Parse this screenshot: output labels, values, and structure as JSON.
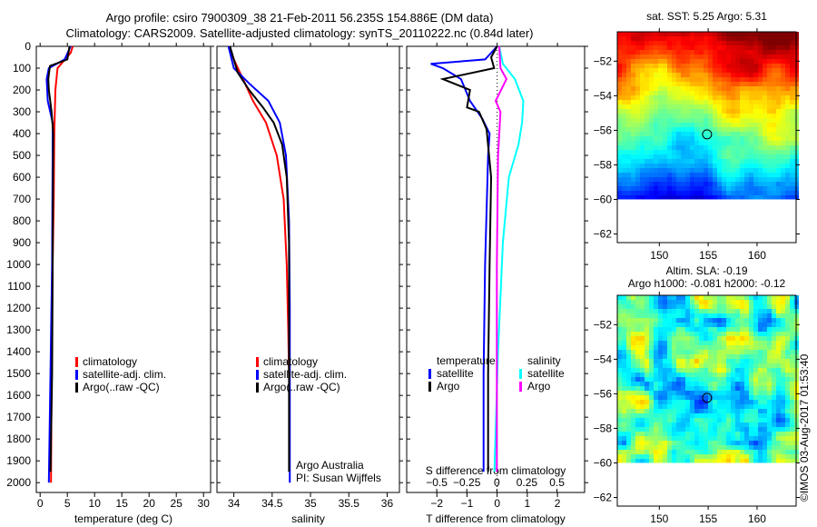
{
  "titles": [
    "Argo profile: csiro 7900309_38 21-Feb-2011 56.235S 154.886E (DM data)",
    "Climatology: CARS2009. Satellite-adjusted climatology: synTS_20110222.nc (0.84d later)"
  ],
  "colors": {
    "climatology": "#ff0000",
    "satellite": "#0000ff",
    "argo": "#000000",
    "sat_sal": "#00ffff",
    "argo_sal": "#ff00ff"
  },
  "watermark": "©IMOS 03-Aug-2017 01:53:40",
  "chart_data": [
    {
      "type": "line",
      "xlabel": "temperature (deg C)",
      "xlim": [
        -0.7,
        31.3
      ],
      "xticks": [
        0,
        5,
        10,
        15,
        20,
        25,
        30
      ],
      "ylim": [
        2045,
        0
      ],
      "yticks": [
        0,
        100,
        200,
        300,
        400,
        500,
        600,
        700,
        800,
        900,
        1000,
        1100,
        1200,
        1300,
        1400,
        1500,
        1600,
        1700,
        1800,
        1900,
        2000
      ],
      "legend": [
        "climatology",
        "satellite-adj. clim.",
        "Argo(..raw -QC)"
      ],
      "series": [
        {
          "name": "climatology",
          "color": "#ff0000",
          "x": [
            6,
            5.6,
            3.2,
            2.8,
            2.6,
            2.5,
            2.3,
            2.1,
            2.0
          ],
          "depth": [
            0,
            30,
            100,
            200,
            400,
            700,
            1000,
            1500,
            2000
          ]
        },
        {
          "name": "satellite-adj. clim.",
          "color": "#0000ff",
          "x": [
            5.6,
            4.5,
            1.6,
            1.2,
            1.4,
            2.3,
            2.3,
            2.2,
            1.9,
            1.6
          ],
          "depth": [
            0,
            60,
            100,
            150,
            250,
            350,
            500,
            1000,
            1500,
            2000
          ]
        },
        {
          "name": "Argo(..raw -QC)",
          "color": "#000000",
          "x": [
            5.4,
            5,
            1.8,
            1.5,
            1.6,
            2.1,
            2.4,
            2.3,
            2.2,
            1.9
          ],
          "depth": [
            0,
            60,
            90,
            150,
            200,
            300,
            400,
            1000,
            1500,
            1950
          ]
        }
      ]
    },
    {
      "type": "line",
      "xlabel": "salinity",
      "xlim": [
        33.78,
        36.16
      ],
      "xticks": [
        34,
        34.5,
        35,
        35.5,
        36
      ],
      "ylim": [
        2045,
        0
      ],
      "legend": [
        "climatology",
        "satellite-adj. clim.",
        "Argo(..raw -QC)"
      ],
      "annotations": [
        "Argo Australia",
        "PI: Susan Wijffels"
      ],
      "series": [
        {
          "name": "climatology",
          "color": "#ff0000",
          "x": [
            33.93,
            34.0,
            34.12,
            34.25,
            34.42,
            34.56,
            34.65,
            34.69,
            34.71,
            34.72
          ],
          "depth": [
            0,
            60,
            150,
            250,
            350,
            500,
            700,
            1000,
            1300,
            1500
          ]
        },
        {
          "name": "satellite-adj. clim.",
          "color": "#0000ff",
          "x": [
            33.93,
            34.0,
            34.2,
            34.45,
            34.6,
            34.68,
            34.72,
            34.73,
            34.73
          ],
          "depth": [
            0,
            100,
            170,
            250,
            350,
            500,
            800,
            1200,
            2000
          ]
        },
        {
          "name": "Argo(..raw -QC)",
          "color": "#000000",
          "x": [
            33.95,
            34.05,
            34.2,
            34.38,
            34.52,
            34.63,
            34.69,
            34.72,
            34.72,
            34.72
          ],
          "depth": [
            0,
            120,
            200,
            280,
            350,
            450,
            600,
            900,
            1500,
            1950
          ]
        }
      ]
    },
    {
      "type": "line",
      "xlabel": "T difference from climatology",
      "x2label": "S difference from climatology",
      "xlim": [
        -3,
        2.9
      ],
      "xticks": [
        -2,
        -1,
        0,
        1,
        2
      ],
      "x2lim": [
        -0.75,
        0.73
      ],
      "x2ticks": [
        -0.5,
        -0.25,
        0,
        0.25,
        0.5
      ],
      "ylim": [
        2045,
        0
      ],
      "legend_titles": [
        "temperature",
        "salinity"
      ],
      "legend": [
        "satellite",
        "Argo",
        "satellite",
        "Argo"
      ],
      "series": [
        {
          "name": "temperature satellite",
          "axis": "T",
          "color": "#0000ff",
          "x": [
            0,
            -0.4,
            -2.2,
            -1.8,
            -1.2,
            -0.9,
            -0.5,
            -0.25,
            -0.3,
            -0.4,
            -0.45,
            -0.45
          ],
          "depth": [
            0,
            60,
            80,
            100,
            150,
            250,
            330,
            400,
            500,
            1000,
            1500,
            1950
          ]
        },
        {
          "name": "temperature Argo",
          "axis": "T",
          "color": "#000000",
          "x": [
            0,
            -0.2,
            -0.1,
            -1.8,
            -0.9,
            -1,
            -0.6,
            -0.35,
            -0.2,
            -0.25,
            -0.3,
            -0.3
          ],
          "depth": [
            0,
            50,
            100,
            150,
            200,
            280,
            300,
            380,
            600,
            1000,
            1500,
            1950
          ]
        },
        {
          "name": "salinity satellite",
          "axis": "S",
          "color": "#00ffff",
          "x": [
            0.02,
            0.05,
            0.15,
            0.22,
            0.21,
            0.18,
            0.1,
            0.05,
            0.01,
            -0.02
          ],
          "depth": [
            0,
            80,
            150,
            250,
            350,
            450,
            600,
            900,
            1400,
            1950
          ]
        },
        {
          "name": "salinity Argo",
          "axis": "S",
          "color": "#ff00ff",
          "x": [
            0.02,
            0.03,
            0.08,
            -0.01,
            0.03,
            0.01,
            0.0,
            0.0
          ],
          "depth": [
            0,
            100,
            150,
            250,
            300,
            500,
            1000,
            1950
          ]
        }
      ]
    },
    {
      "type": "heatmap",
      "title": "sat. SST: 5.25 Argo: 5.31",
      "xlim": [
        145.7,
        164
      ],
      "xticks": [
        150,
        155,
        160
      ],
      "ylim": [
        -62.5,
        -50.3
      ],
      "yticks": [
        -52,
        -54,
        -56,
        -58,
        -60,
        -62
      ],
      "marker": [
        154.886,
        -56.235
      ]
    },
    {
      "type": "heatmap",
      "title": "Altim. SLA: -0.19",
      "subtitle": "Argo h1000: -0.081 h2000: -0.12",
      "xlim": [
        145.7,
        164
      ],
      "xticks": [
        150,
        155,
        160
      ],
      "ylim": [
        -62.5,
        -50.3
      ],
      "yticks": [
        -52,
        -54,
        -56,
        -58,
        -60,
        -62
      ],
      "marker": [
        154.886,
        -56.235
      ]
    }
  ]
}
